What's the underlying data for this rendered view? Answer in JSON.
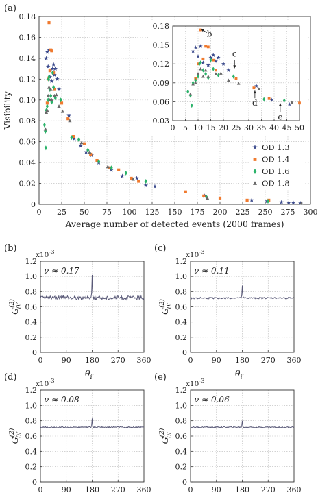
{
  "colors": {
    "od13": "#3b4a8c",
    "od14": "#f07a2e",
    "od16": "#2bb36a",
    "od18": "#6a6a6a",
    "trace": "#5a5a78"
  },
  "chart_data": [
    {
      "id": "a",
      "type": "scatter",
      "panel_label": "(a)",
      "xlabel": "Average number of detected events (2000 frames)",
      "ylabel": "Visibility",
      "xlim": [
        0,
        300
      ],
      "ylim": [
        0,
        0.18
      ],
      "xticks": [
        "0",
        "25",
        "50",
        "75",
        "100",
        "125",
        "150",
        "175",
        "200",
        "225",
        "250",
        "275",
        "300"
      ],
      "yticks": [
        "0",
        "0.02",
        "0.04",
        "0.06",
        "0.08",
        "0.10",
        "0.12",
        "0.14",
        "0.16",
        "0.18"
      ],
      "grid": true,
      "legend_position": "lower-right",
      "series": [
        {
          "name": "OD 1.3",
          "marker": "star",
          "color_key": "od13",
          "points": [
            [
              8,
              0.14
            ],
            [
              9,
              0.146
            ],
            [
              10,
              0.132
            ],
            [
              11,
              0.148
            ],
            [
              12,
              0.122
            ],
            [
              14,
              0.118
            ],
            [
              15,
              0.13
            ],
            [
              16,
              0.134
            ],
            [
              17,
              0.124
            ],
            [
              18,
              0.13
            ],
            [
              20,
              0.12
            ],
            [
              22,
              0.11
            ],
            [
              33,
              0.085
            ],
            [
              39,
              0.063
            ],
            [
              46,
              0.056
            ],
            [
              52,
              0.05
            ],
            [
              58,
              0.047
            ],
            [
              66,
              0.04
            ],
            [
              80,
              0.033
            ],
            [
              92,
              0.027
            ],
            [
              108,
              0.025
            ],
            [
              118,
              0.018
            ],
            [
              128,
              0.017
            ],
            [
              183,
              0.008
            ],
            [
              235,
              0.004
            ],
            [
              252,
              0.003
            ],
            [
              268,
              0.002
            ],
            [
              276,
              0.0015
            ],
            [
              281,
              0.0015
            ],
            [
              289,
              0.001
            ]
          ]
        },
        {
          "name": "OD 1.4",
          "marker": "square",
          "color_key": "od14",
          "points": [
            [
              9,
              0.097
            ],
            [
              10,
              0.12
            ],
            [
              11,
              0.174
            ],
            [
              12,
              0.128
            ],
            [
              13,
              0.148
            ],
            [
              14,
              0.147
            ],
            [
              16,
              0.126
            ],
            [
              17,
              0.11
            ],
            [
              25,
              0.097
            ],
            [
              32,
              0.082
            ],
            [
              38,
              0.065
            ],
            [
              50,
              0.058
            ],
            [
              57,
              0.048
            ],
            [
              64,
              0.042
            ],
            [
              78,
              0.035
            ],
            [
              88,
              0.033
            ],
            [
              102,
              0.025
            ],
            [
              110,
              0.022
            ],
            [
              162,
              0.012
            ],
            [
              182,
              0.008
            ],
            [
              200,
              0.006
            ],
            [
              230,
              0.004
            ],
            [
              254,
              0.004
            ]
          ]
        },
        {
          "name": "OD 1.6",
          "marker": "diamond",
          "color_key": "od16",
          "points": [
            [
              6,
              0.076
            ],
            [
              7,
              0.07
            ],
            [
              7.5,
              0.054
            ],
            [
              8,
              0.09
            ],
            [
              9,
              0.094
            ],
            [
              10,
              0.1
            ],
            [
              10.5,
              0.12
            ],
            [
              11,
              0.122
            ],
            [
              12,
              0.11
            ],
            [
              13,
              0.104
            ],
            [
              14,
              0.098
            ],
            [
              15,
              0.126
            ],
            [
              16,
              0.112
            ],
            [
              18,
              0.102
            ],
            [
              24,
              0.1
            ],
            [
              36,
              0.064
            ],
            [
              44,
              0.062
            ],
            [
              54,
              0.052
            ],
            [
              66,
              0.041
            ],
            [
              80,
              0.035
            ],
            [
              96,
              0.03
            ],
            [
              118,
              0.022
            ],
            [
              185,
              0.007
            ],
            [
              253,
              0.003
            ]
          ]
        },
        {
          "name": "OD 1.8",
          "marker": "triangle",
          "color_key": "od18",
          "points": [
            [
              7,
              0.072
            ],
            [
              8,
              0.088
            ],
            [
              9,
              0.09
            ],
            [
              10,
              0.104
            ],
            [
              11,
              0.112
            ],
            [
              12,
              0.1
            ],
            [
              13,
              0.11
            ],
            [
              14,
              0.1
            ],
            [
              17,
              0.104
            ],
            [
              19,
              0.105
            ],
            [
              22,
              0.094
            ],
            [
              26,
              0.089
            ],
            [
              34,
              0.08
            ],
            [
              47,
              0.059
            ],
            [
              56,
              0.05
            ],
            [
              76,
              0.036
            ],
            [
              104,
              0.024
            ],
            [
              186,
              0.006
            ],
            [
              290,
              0.001
            ]
          ]
        }
      ]
    },
    {
      "id": "a-inset",
      "type": "scatter",
      "xlim": [
        0,
        50
      ],
      "ylim": [
        0.03,
        0.18
      ],
      "xticks": [
        "0",
        "5",
        "10",
        "15",
        "20",
        "25",
        "30",
        "35",
        "40",
        "45",
        "50"
      ],
      "yticks": [
        "0.03",
        "0.06",
        "0.09",
        "0.12",
        "0.15",
        "0.18"
      ],
      "grid": true,
      "annotations": [
        {
          "text": "b",
          "x": 11,
          "y": 0.174
        },
        {
          "text": "c",
          "x": 24,
          "y": 0.11
        },
        {
          "text": "d",
          "x": 32,
          "y": 0.082
        },
        {
          "text": "e",
          "x": 42,
          "y": 0.062
        }
      ]
    },
    {
      "id": "b",
      "type": "line",
      "panel_label": "(b)",
      "visibility_text": "ν ≈ 0.17",
      "scale_text": "x10",
      "scale_exponent": "-3",
      "xlim": [
        0,
        360
      ],
      "ylim": [
        0,
        1.2
      ],
      "xticks": [
        "0",
        "90",
        "180",
        "270",
        "360"
      ],
      "yticks": [
        "0",
        "0.2",
        "0.4",
        "0.6",
        "0.8",
        "1.0",
        "1.2"
      ],
      "xlabel": "θ",
      "xlabel_sub": "i′",
      "ylabel": "G",
      "ylabel_sup": "(2)",
      "ylabel_sub": "θᵢ′",
      "baseline": 0.72,
      "noise": 0.025,
      "peak_x": 180,
      "peak_y": 1.02
    },
    {
      "id": "c",
      "type": "line",
      "panel_label": "(c)",
      "visibility_text": "ν ≈ 0.11",
      "scale_text": "x10",
      "scale_exponent": "-3",
      "xlim": [
        0,
        360
      ],
      "ylim": [
        0,
        1.2
      ],
      "xticks": [
        "0",
        "90",
        "180",
        "270",
        "360"
      ],
      "yticks": [
        "0",
        "0.2",
        "0.4",
        "0.6",
        "0.8",
        "1.0",
        "1.2"
      ],
      "xlabel": "θ",
      "xlabel_sub": "i′",
      "ylabel": "G",
      "ylabel_sup": "(2)",
      "ylabel_sub": "θᵢ′",
      "baseline": 0.715,
      "noise": 0.01,
      "peak_x": 180,
      "peak_y": 0.88
    },
    {
      "id": "d",
      "type": "line",
      "panel_label": "(d)",
      "visibility_text": "ν ≈ 0.08",
      "scale_text": "x10",
      "scale_exponent": "-3",
      "xlim": [
        0,
        360
      ],
      "ylim": [
        0,
        1.2
      ],
      "xticks": [
        "0",
        "90",
        "180",
        "270",
        "360"
      ],
      "yticks": [
        "0",
        "0.2",
        "0.4",
        "0.6",
        "0.8",
        "1.0",
        "1.2"
      ],
      "xlabel": "θ",
      "xlabel_sub": "i′",
      "ylabel": "G",
      "ylabel_sup": "(2)",
      "ylabel_sub": "θᵢ′",
      "baseline": 0.715,
      "noise": 0.008,
      "peak_x": 180,
      "peak_y": 0.83
    },
    {
      "id": "e",
      "type": "line",
      "panel_label": "(e)",
      "visibility_text": "ν ≈ 0.06",
      "scale_text": "x10",
      "scale_exponent": "-3",
      "xlim": [
        0,
        360
      ],
      "ylim": [
        0,
        1.2
      ],
      "xticks": [
        "0",
        "90",
        "180",
        "270",
        "360"
      ],
      "yticks": [
        "0",
        "0.2",
        "0.4",
        "0.6",
        "0.8",
        "1.0",
        "1.2"
      ],
      "xlabel": "θ",
      "xlabel_sub": "i′",
      "ylabel": "G",
      "ylabel_sup": "(2)",
      "ylabel_sub": "θᵢ′",
      "baseline": 0.715,
      "noise": 0.007,
      "peak_x": 180,
      "peak_y": 0.8
    }
  ]
}
